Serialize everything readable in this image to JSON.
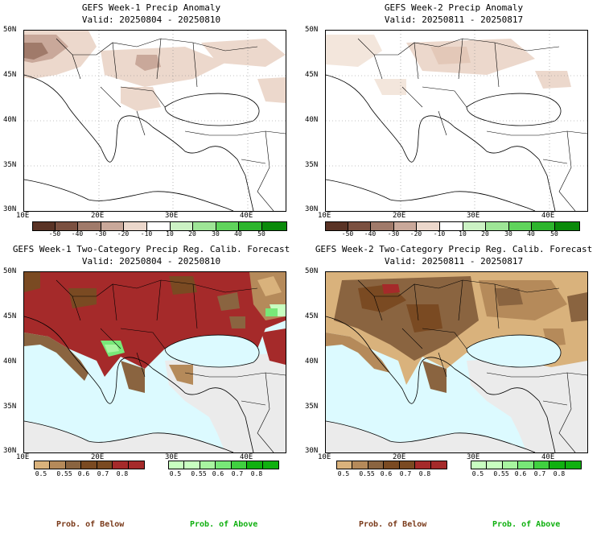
{
  "panels": [
    {
      "title": "GEFS Week-1 Precip Anomaly",
      "valid": "Valid: 20250804 - 20250810"
    },
    {
      "title": "GEFS Week-2 Precip Anomaly",
      "valid": "Valid: 20250811 - 20250817"
    },
    {
      "title": "GEFS Week-1 Two-Category Precip Reg. Calib. Forecast",
      "valid": "Valid: 20250804 - 20250810"
    },
    {
      "title": "GEFS Week-2 Two-Category Precip Reg. Calib. Forecast",
      "valid": "Valid: 20250811 - 20250817"
    }
  ],
  "lat_labels": [
    "50N",
    "45N",
    "40N",
    "35N",
    "30N"
  ],
  "lon_labels": [
    "10E",
    "20E",
    "30E",
    "40E"
  ],
  "anomaly_colorbar": {
    "labels": [
      "-50",
      "-40",
      "-30",
      "-20",
      "-10",
      "10",
      "20",
      "30",
      "40",
      "50"
    ],
    "colors": [
      "#5a3325",
      "#7b5040",
      "#a07a6a",
      "#c9a89a",
      "#ecd8cc",
      "#ffffff",
      "#ccf2c4",
      "#9ee596",
      "#60d45c",
      "#2db52d",
      "#0a8a0a"
    ]
  },
  "prob_below": {
    "labels": [
      "0.5",
      "0.55",
      "0.6",
      "0.7",
      "0.8"
    ],
    "colors": [
      "#d9b27c",
      "#b58a5a",
      "#8a6440",
      "#7a4a22",
      "#a52a2a"
    ]
  },
  "prob_above": {
    "labels": [
      "0.5",
      "0.55",
      "0.6",
      "0.7",
      "0.8"
    ],
    "colors": [
      "#c8ffc0",
      "#a8f5a0",
      "#78e878",
      "#40d040",
      "#10b010"
    ]
  },
  "bottom_labels": {
    "below": "Prob. of Below",
    "above": "Prob. of Above"
  },
  "colors": {
    "below_text": "#7a3a1a",
    "above_text": "#10b010",
    "sea": "#dcfaff",
    "land_gray": "#ebebeb"
  }
}
